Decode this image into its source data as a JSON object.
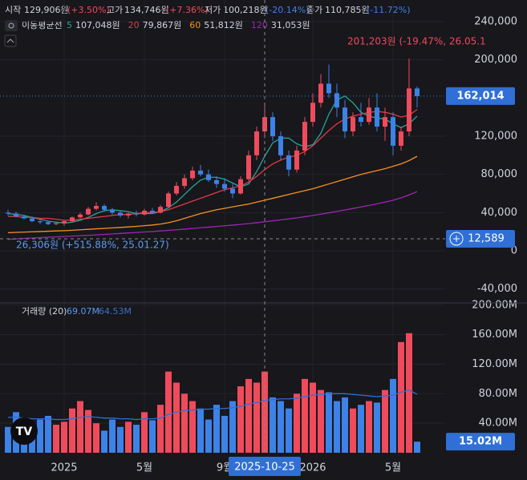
{
  "header": {
    "ohlc": [
      {
        "name": "시작",
        "value": "129,906원",
        "change": "(+3.50%)"
      },
      {
        "name": "고가",
        "value": "134,746원",
        "change": "(+7.36%)"
      },
      {
        "name": "저가",
        "value": "100,218원",
        "change": "(-20.14%)"
      },
      {
        "name": "종가",
        "value": "110,785원",
        "change": "(-11.72%)"
      }
    ],
    "ma_title": "이동평균선"
  },
  "chart_data": {
    "type": "candlestick",
    "up_color": "#ef4b5c",
    "down_color": "#3d82e6",
    "grid": true,
    "ylim": [
      -53700,
      262600
    ],
    "yticks": [
      {
        "value": -40000,
        "label": "-40,000"
      },
      0,
      {
        "value": 40000,
        "label": "40,000"
      },
      {
        "value": 80000,
        "label": "80,000"
      },
      {
        "value": 120000,
        "label": "120,000"
      },
      {
        "value": 200000,
        "label": "200,000"
      },
      {
        "value": 240000,
        "label": "240,000"
      }
    ],
    "xticks": [
      {
        "value": 7,
        "label": "2025"
      },
      {
        "value": 17,
        "label": "5월"
      },
      {
        "value": 27,
        "label": "9월"
      },
      {
        "value": 38,
        "label": "2026"
      },
      {
        "value": 48,
        "label": "5월"
      }
    ],
    "ohlc": [
      [
        40000,
        43000,
        37000,
        39000
      ],
      [
        39000,
        41000,
        35000,
        36000
      ],
      [
        36000,
        38000,
        33000,
        34000
      ],
      [
        34000,
        36000,
        30000,
        31000
      ],
      [
        31000,
        33000,
        28000,
        30000
      ],
      [
        30000,
        31000,
        27000,
        28000
      ],
      [
        28000,
        30000,
        27000,
        29000
      ],
      [
        29000,
        32000,
        26306,
        31000
      ],
      [
        31000,
        36000,
        30000,
        35000
      ],
      [
        35000,
        40000,
        34000,
        38000
      ],
      [
        38000,
        46000,
        37000,
        44000
      ],
      [
        44000,
        51000,
        42000,
        47000
      ],
      [
        47000,
        49000,
        41000,
        43000
      ],
      [
        43000,
        45000,
        38000,
        40000
      ],
      [
        40000,
        42000,
        35000,
        37000
      ],
      [
        37000,
        40000,
        34000,
        39000
      ],
      [
        39000,
        42000,
        36000,
        38000
      ],
      [
        38000,
        44000,
        37000,
        42000
      ],
      [
        42000,
        45000,
        39000,
        40000
      ],
      [
        40000,
        48000,
        39000,
        46000
      ],
      [
        46000,
        62000,
        45000,
        60000
      ],
      [
        60000,
        72000,
        58000,
        68000
      ],
      [
        68000,
        80000,
        65000,
        76000
      ],
      [
        76000,
        88000,
        74000,
        84000
      ],
      [
        84000,
        90000,
        78000,
        80000
      ],
      [
        80000,
        85000,
        72000,
        74000
      ],
      [
        74000,
        78000,
        66000,
        70000
      ],
      [
        70000,
        76000,
        62000,
        65000
      ],
      [
        65000,
        70000,
        55000,
        60000
      ],
      [
        60000,
        78000,
        59000,
        75000
      ],
      [
        75000,
        105000,
        73000,
        100000
      ],
      [
        100000,
        130000,
        95000,
        125000
      ],
      [
        125000,
        152000,
        118000,
        140000
      ],
      [
        140000,
        145000,
        115000,
        120000
      ],
      [
        120000,
        125000,
        95000,
        100000
      ],
      [
        100000,
        105000,
        78000,
        85000
      ],
      [
        85000,
        110000,
        82000,
        105000
      ],
      [
        105000,
        140000,
        100000,
        135000
      ],
      [
        135000,
        165000,
        130000,
        155000
      ],
      [
        155000,
        185000,
        150000,
        175000
      ],
      [
        175000,
        195000,
        160000,
        165000
      ],
      [
        165000,
        175000,
        140000,
        150000
      ],
      [
        150000,
        158000,
        118000,
        125000
      ],
      [
        125000,
        145000,
        120000,
        140000
      ],
      [
        140000,
        155000,
        130000,
        135000
      ],
      [
        135000,
        160000,
        132000,
        150000
      ],
      [
        150000,
        165000,
        125000,
        130000
      ],
      [
        130000,
        150000,
        115000,
        140000
      ],
      [
        140000,
        145000,
        100000,
        110000
      ],
      [
        110000,
        130000,
        105000,
        125000
      ],
      [
        125000,
        201203,
        120000,
        170000
      ],
      [
        170000,
        172000,
        150000,
        162014
      ]
    ],
    "ma": [
      {
        "name": "5",
        "legend_value": "107,048원",
        "color": "#26a69a",
        "values": [
          39000,
          38000,
          37000,
          35000,
          33000,
          31000,
          30000,
          29000,
          30000,
          32000,
          35000,
          39000,
          42000,
          43000,
          42000,
          41000,
          39000,
          39000,
          39000,
          41000,
          45000,
          51000,
          59000,
          67000,
          74000,
          77000,
          77000,
          75000,
          71000,
          67000,
          70000,
          83000,
          99000,
          113000,
          118000,
          118000,
          112000,
          109000,
          111000,
          123000,
          143000,
          158000,
          162000,
          155000,
          145000,
          141000,
          139000,
          138000,
          133000,
          129000,
          133000,
          141000
        ]
      },
      {
        "name": "20",
        "legend_value": "79,867원",
        "color": "#e53945",
        "values": [
          36000,
          36000,
          35000,
          35000,
          34000,
          34000,
          33000,
          32000,
          32000,
          33000,
          34000,
          35000,
          36000,
          37000,
          38000,
          38000,
          39000,
          40000,
          40000,
          41000,
          43000,
          46000,
          49000,
          52000,
          55000,
          58000,
          61000,
          64000,
          66000,
          68000,
          72000,
          78000,
          85000,
          91000,
          95000,
          98000,
          100000,
          104000,
          110000,
          118000,
          126000,
          133000,
          138000,
          141000,
          143000,
          145000,
          146000,
          145000,
          143000,
          140000,
          142000,
          148000
        ]
      },
      {
        "name": "60",
        "legend_value": "51,812원",
        "color": "#f5921f",
        "values": [
          19000,
          19300,
          19600,
          19900,
          20200,
          20500,
          20800,
          21100,
          21500,
          22000,
          22500,
          23000,
          23500,
          24000,
          24500,
          25000,
          25600,
          26300,
          27000,
          28000,
          29500,
          31500,
          34000,
          36500,
          39000,
          41000,
          43000,
          44500,
          46000,
          47500,
          49000,
          51000,
          53000,
          55000,
          57000,
          59000,
          61000,
          63000,
          65000,
          67500,
          70000,
          72500,
          75000,
          77500,
          80000,
          82000,
          84000,
          86000,
          88500,
          91000,
          94500,
          99000
        ]
      },
      {
        "name": "120",
        "legend_value": "31,053원",
        "color": "#9c27b0",
        "values": [
          12000,
          12500,
          13000,
          13400,
          13800,
          14200,
          14600,
          15000,
          15400,
          15800,
          16200,
          16700,
          17200,
          17700,
          18200,
          18700,
          19200,
          19700,
          20200,
          20800,
          21400,
          22000,
          22700,
          23400,
          24100,
          24800,
          25500,
          26200,
          26900,
          27700,
          28500,
          29400,
          30400,
          31400,
          32400,
          33400,
          34500,
          35700,
          37000,
          38400,
          39800,
          41300,
          42800,
          44300,
          45900,
          47500,
          49200,
          51000,
          53000,
          55500,
          58500,
          62000
        ]
      }
    ],
    "last_price": {
      "value": 162014,
      "label": "162,014"
    },
    "max_label": "201,203원 (-19.47%, 26.05.1",
    "min_label": "26,306원 (+515.88%, 25.01.27)",
    "crosshair": {
      "price": {
        "value": 12589,
        "label": "12,589"
      },
      "date": {
        "value": 32,
        "label": "2025-10-25"
      }
    },
    "volume": {
      "name": "거래량 (20)",
      "legend_values": [
        "69.07M",
        "64.53M"
      ],
      "ma_color": "#2f6fd6",
      "ylim": [
        0,
        203000000
      ],
      "yticks": [
        {
          "value": 40000000,
          "label": "40.00M"
        },
        {
          "value": 80000000,
          "label": "80.00M"
        },
        {
          "value": 120000000,
          "label": "120.00M"
        },
        {
          "value": 160000000,
          "label": "160.00M"
        },
        {
          "value": 200000000,
          "label": "200.00M"
        }
      ],
      "values": [
        35000000,
        55000000,
        40000000,
        30000000,
        45000000,
        50000000,
        38000000,
        42000000,
        60000000,
        70000000,
        58000000,
        40000000,
        30000000,
        45000000,
        35000000,
        42000000,
        38000000,
        55000000,
        44000000,
        65000000,
        110000000,
        95000000,
        80000000,
        70000000,
        60000000,
        45000000,
        65000000,
        50000000,
        70000000,
        90000000,
        100000000,
        95000000,
        110000000,
        75000000,
        70000000,
        60000000,
        80000000,
        100000000,
        95000000,
        85000000,
        82000000,
        70000000,
        75000000,
        60000000,
        65000000,
        70000000,
        68000000,
        85000000,
        100000000,
        150000000,
        162000000,
        15020000
      ],
      "ma": [
        48000000,
        48000000,
        47000000,
        46000000,
        46000000,
        46000000,
        45000000,
        45000000,
        46000000,
        48000000,
        49000000,
        48000000,
        47000000,
        47000000,
        46000000,
        46000000,
        45000000,
        46000000,
        46000000,
        47000000,
        52000000,
        55000000,
        57000000,
        58000000,
        59000000,
        59000000,
        60000000,
        60000000,
        61000000,
        63000000,
        66000000,
        68000000,
        71000000,
        72000000,
        73000000,
        73000000,
        74000000,
        76000000,
        78000000,
        79000000,
        80000000,
        80000000,
        80000000,
        79000000,
        78000000,
        77000000,
        76000000,
        77000000,
        78000000,
        82000000,
        85000000,
        79000000
      ],
      "last": {
        "value": 15020000,
        "label": "15.02M"
      }
    }
  }
}
